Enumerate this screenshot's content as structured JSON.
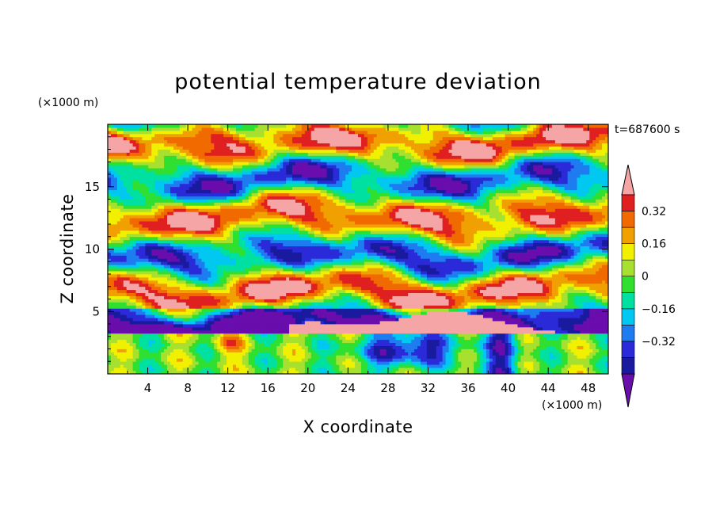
{
  "chart_data": {
    "type": "heatmap",
    "title": "potential temperature deviation",
    "xlabel": "X coordinate",
    "ylabel": "Z coordinate",
    "x_unit": "(×1000 m)",
    "y_unit": "(×1000 m)",
    "time_label": "t=687600 s",
    "xlim": [
      0,
      50
    ],
    "ylim": [
      0,
      20
    ],
    "x_ticks": [
      "4",
      "8",
      "12",
      "16",
      "20",
      "24",
      "28",
      "32",
      "36",
      "40",
      "44",
      "48"
    ],
    "x_tick_values": [
      4,
      8,
      12,
      16,
      20,
      24,
      28,
      32,
      36,
      40,
      44,
      48
    ],
    "y_ticks": [
      "5",
      "10",
      "15"
    ],
    "y_tick_values": [
      5,
      10,
      15
    ],
    "colorbar": {
      "levels": [
        -0.48,
        -0.4,
        -0.32,
        -0.24,
        -0.16,
        -0.08,
        0,
        0.08,
        0.16,
        0.24,
        0.32,
        0.4
      ],
      "colors": [
        "#6a0dad",
        "#1a1a9e",
        "#2a2ad8",
        "#1e7cf0",
        "#00c8f0",
        "#00e0a0",
        "#30e030",
        "#a8e030",
        "#f0f000",
        "#f0a000",
        "#f06a00",
        "#e02020",
        "#f5a5a5"
      ],
      "tick_labels": [
        "0.32",
        "0.16",
        "0",
        "−0.16",
        "−0.32"
      ],
      "tick_values": [
        0.32,
        0.16,
        0,
        -0.16,
        -0.32
      ],
      "extend": "both"
    }
  }
}
